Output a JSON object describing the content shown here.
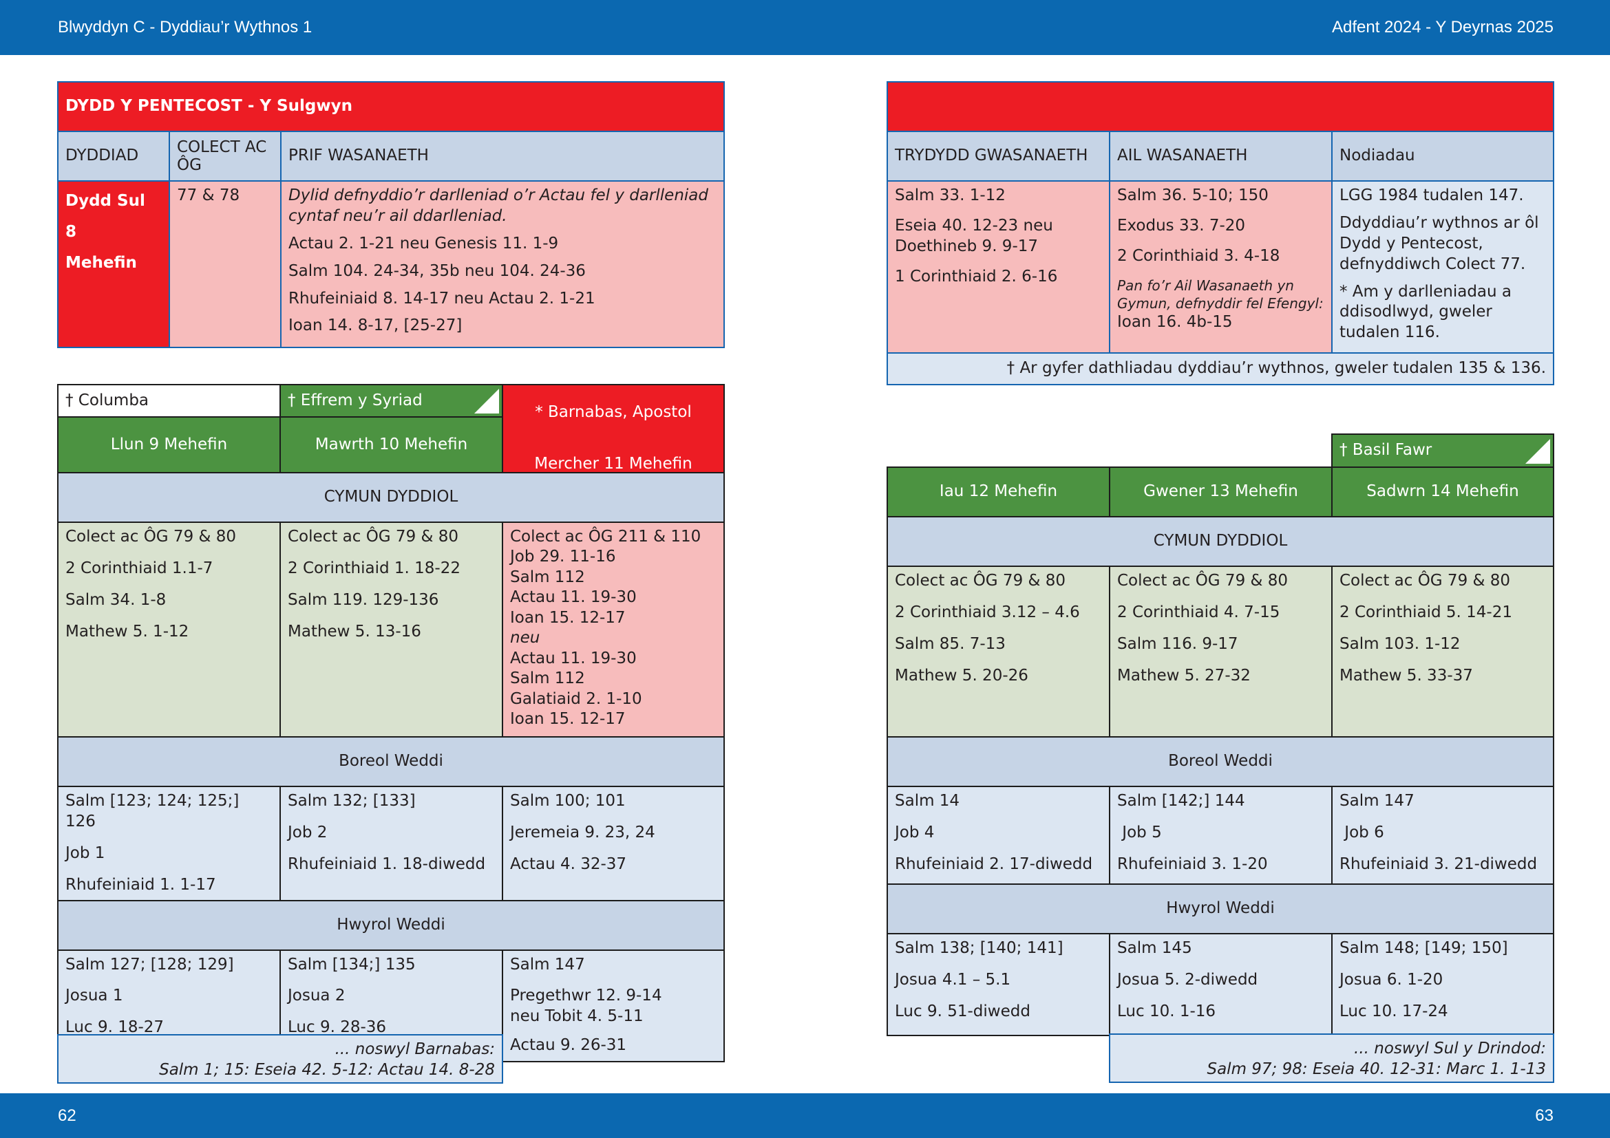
{
  "header": {
    "left": "Blwyddyn  C - Dyddiau’r Wythnos 1",
    "right": "Adfent  2024 - Y Deyrnas 2025"
  },
  "footer": {
    "left_page": "62",
    "right_page": "63"
  },
  "sunday": {
    "title": "DYDD Y PENTECOST - Y Sulgwyn",
    "col_date": "DYDDIAD",
    "col_collect": "COLECT AC ÔG",
    "col_main": "PRIF WASANAETH",
    "date_lines": [
      "Dydd Sul",
      "8",
      "Mehefin"
    ],
    "collect": "77 & 78",
    "main_note": "Dylid defnyddio’r darlleniad o’r Actau fel y darlleniad cyntaf neu’r ail ddarlleniad.",
    "main_lines": [
      "Actau 2. 1-21 neu  Genesis 11. 1-9",
      "Salm 104. 24-34, 35b neu  104. 24-36",
      "Rhufeiniaid 8. 14-17 neu  Actau 2. 1-21",
      "Ioan 14. 8-17, [25-27]"
    ],
    "col_third": "TRYDYDD GWASANAETH",
    "col_second": "AIL WASANAETH",
    "col_notes": "Nodiadau",
    "third": [
      "Salm 33. 1-12",
      "Eseia 40. 12-23 neu Doethineb 9. 9-17",
      "1 Corinthiaid 2. 6-16"
    ],
    "second": [
      "Salm 36. 5-10; 150",
      "Exodus 33. 7-20",
      "2 Corinthiaid 3. 4-18"
    ],
    "second_note": "Pan fo’r Ail Wasanaeth yn Gymun, defnyddir fel Efengyl:",
    "second_gospel": "Ioan 16. 4b-15",
    "notes": [
      "LGG 1984 tudalen 147.",
      "Ddyddiau’r wythnos ar ôl Dydd y Pentecost, defnyddiwch Colect 77.",
      "* Am y darlleniadau a ddisodlwyd, gweler tudalen 116."
    ],
    "footnote": "† Ar gyfer dathliadau dyddiau’r wythnos, gweler tudalen 135 & 136."
  },
  "week1": {
    "saints": [
      "† Columba",
      "† Effrem y Syriad"
    ],
    "special": "* Barnabas, Apostol",
    "days": [
      "Llun 9 Mehefin",
      "Mawrth 10 Mehefin",
      "Mercher 11 Mehefin"
    ],
    "section_eucharist": "CYMUN DYDDIOL",
    "eucharist": [
      [
        "Colect ac ÔG 79 & 80",
        "2 Corinthiaid 1.1-7",
        "Salm 34. 1-8",
        "Mathew 5. 1-12"
      ],
      [
        "Colect ac ÔG 79 & 80",
        "2 Corinthiaid 1. 18-22",
        "Salm 119. 129-136",
        "Mathew 5. 13-16"
      ],
      [
        "Colect ac ÔG 211 & 110",
        "Job 29. 11-16",
        "Salm 112",
        "Actau 11. 19-30",
        "Ioan 15. 12-17",
        "neu",
        "Actau 11. 19-30",
        "Salm 112",
        "Galatiaid 2. 1-10",
        "Ioan 15. 12-17"
      ]
    ],
    "section_morning": "Boreol Weddi",
    "morning": [
      [
        "Salm [123; 124; 125;] 126",
        "Job 1",
        "Rhufeiniaid 1. 1-17"
      ],
      [
        "Salm 132; [133]",
        "Job 2",
        "Rhufeiniaid 1. 18-diwedd"
      ],
      [
        "Salm 100; 101",
        "Jeremeia 9. 23, 24",
        "Actau 4. 32-37"
      ]
    ],
    "section_evening": "Hwyrol Weddi",
    "evening": [
      [
        "Salm 127; [128; 129]",
        "Josua 1",
        "Luc 9. 18-27"
      ],
      [
        "Salm [134;] 135",
        "Josua 2",
        "Luc 9. 28-36"
      ],
      [
        "Salm 147",
        "Pregethwr 12. 9-14 neu Tobit 4. 5-11",
        "Actau 9. 26-31"
      ]
    ],
    "eve_title": "... noswyl Barnabas:",
    "eve_readings": "Salm 1; 15:  Eseia 42. 5-12:  Actau 14. 8-28"
  },
  "week2": {
    "saint": "† Basil Fawr",
    "days": [
      "Iau 12 Mehefin",
      "Gwener 13 Mehefin",
      "Sadwrn 14 Mehefin"
    ],
    "section_eucharist": "CYMUN DYDDIOL",
    "eucharist": [
      [
        "Colect ac ÔG 79 & 80",
        "2 Corinthiaid 3.12 – 4.6",
        "Salm 85. 7-13",
        "Mathew 5. 20-26"
      ],
      [
        "Colect ac ÔG 79 & 80",
        "2 Corinthiaid 4. 7-15",
        "Salm 116. 9-17",
        "Mathew 5. 27-32"
      ],
      [
        "Colect ac ÔG 79 & 80",
        "2 Corinthiaid 5. 14-21",
        "Salm 103. 1-12",
        "Mathew 5. 33-37"
      ]
    ],
    "section_morning": "Boreol Weddi",
    "morning": [
      [
        "Salm 14",
        "Job 4",
        "Rhufeiniaid 2. 17-diwedd"
      ],
      [
        "Salm [142;] 144",
        " Job 5",
        "Rhufeiniaid 3. 1-20"
      ],
      [
        "Salm 147",
        " Job 6",
        "Rhufeiniaid 3. 21-diwedd"
      ]
    ],
    "section_evening": "Hwyrol Weddi",
    "evening": [
      [
        "Salm 138; [140; 141]",
        "Josua 4.1 – 5.1",
        "Luc 9. 51-diwedd"
      ],
      [
        "Salm 145",
        "Josua 5. 2-diwedd",
        "Luc 10. 1-16"
      ],
      [
        "Salm 148; [149; 150]",
        "Josua 6. 1-20",
        "Luc 10. 17-24"
      ]
    ],
    "eve_title": "... noswyl Sul y Drindod:",
    "eve_readings": "Salm 97; 98: Eseia 40. 12-31: Marc 1. 1-13"
  },
  "colors": {
    "band": "#0b68b0",
    "red": "#ed1c24",
    "green": "#4c9341",
    "header_blue": "#c6d4e6",
    "pink": "#f7bcbc",
    "light_blue": "#dce6f2",
    "light_green": "#d9e2cf"
  }
}
